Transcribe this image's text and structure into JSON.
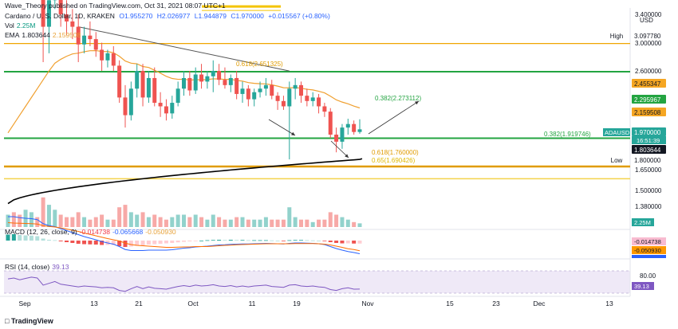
{
  "header": {
    "publisher": "Wave_Theory published on TradingView.com, Oct 31, 2021 08:07 UTC+1",
    "symbol": "Cardano / U. S. Dollar, 1D, KRAKEN",
    "open": "O1.955270",
    "high": "H2.026977",
    "low": "L1.944879",
    "close": "C1.970000",
    "change": "+0.015567 (+0.80%)",
    "vol_label": "Vol",
    "vol_value": "2.25M",
    "ema_label": "EMA",
    "ema_value1": "1.803644",
    "ema_value2": "2.159508"
  },
  "macd": {
    "label": "MACD (12, 26, close, 9)",
    "value1": "-0.014738",
    "value2": "-0.065668",
    "value3": "-0.050930",
    "axis_values": [
      "-0.014738",
      "-0.050930"
    ]
  },
  "rsi": {
    "label": "RSI (14, close)",
    "value": "39.13",
    "axis_values": [
      "80.00",
      "39.13"
    ]
  },
  "footer": {
    "brand": "TradingView"
  },
  "chart_data": {
    "type": "candlestick",
    "currency_label": "USD",
    "price_axis_ticks": [
      "3.400000",
      "3.000000",
      "2.600000",
      "1.650000",
      "1.500000",
      "1.380000"
    ],
    "price_labels": [
      {
        "text": "High",
        "value": "3.097780",
        "style": "plain"
      },
      {
        "text": "",
        "value": "2.455347",
        "style": "orange"
      },
      {
        "text": "",
        "value": "2.295967",
        "style": "green"
      },
      {
        "text": "",
        "value": "2.159508",
        "style": "orange"
      },
      {
        "text": "ADAUSD",
        "value": "1.970000",
        "style": "teal",
        "sub": "16:51:39"
      },
      {
        "text": "",
        "value": "1.803644",
        "style": "black"
      },
      {
        "text": "Low",
        "value": "1.800000",
        "style": "plain"
      }
    ],
    "annotations": [
      {
        "text": "0.618(2.651325)",
        "price": 2.651325
      },
      {
        "text": "0.382(2.273112)",
        "price": 2.273112
      },
      {
        "text": "0.382(1.919746)",
        "price": 1.919746
      },
      {
        "text": "0.618(1.760000)",
        "price": 1.76
      },
      {
        "text": "0.65(1.690426)",
        "price": 1.690426
      }
    ],
    "x_labels": [
      "Sep",
      "13",
      "21",
      "Oct",
      "11",
      "19",
      "Nov",
      "15",
      "23",
      "Dec",
      "13"
    ],
    "volume_label": "2.25M",
    "candles": [
      {
        "date": "2021-09-01",
        "o": 2.85,
        "h": 3.02,
        "l": 2.82,
        "c": 2.95
      },
      {
        "date": "2021-09-02",
        "o": 2.95,
        "h": 3.05,
        "l": 2.88,
        "c": 2.92
      },
      {
        "date": "2021-09-03",
        "o": 2.92,
        "h": 2.97,
        "l": 2.8,
        "c": 2.88
      },
      {
        "date": "2021-09-04",
        "o": 2.88,
        "h": 2.98,
        "l": 2.84,
        "c": 2.95
      },
      {
        "date": "2021-09-05",
        "o": 2.95,
        "h": 3.04,
        "l": 2.9,
        "c": 3.0
      },
      {
        "date": "2021-09-06",
        "o": 3.0,
        "h": 3.06,
        "l": 2.94,
        "c": 2.96
      },
      {
        "date": "2021-09-07",
        "o": 2.96,
        "h": 3.01,
        "l": 2.35,
        "c": 2.55
      },
      {
        "date": "2021-09-08",
        "o": 2.55,
        "h": 2.75,
        "l": 2.4,
        "c": 2.7
      },
      {
        "date": "2021-09-09",
        "o": 2.7,
        "h": 2.88,
        "l": 2.65,
        "c": 2.85
      },
      {
        "date": "2021-09-10",
        "o": 2.85,
        "h": 2.92,
        "l": 2.55,
        "c": 2.62
      },
      {
        "date": "2021-09-11",
        "o": 2.62,
        "h": 2.7,
        "l": 2.5,
        "c": 2.58
      },
      {
        "date": "2021-09-12",
        "o": 2.58,
        "h": 2.65,
        "l": 2.48,
        "c": 2.55
      },
      {
        "date": "2021-09-13",
        "o": 2.55,
        "h": 2.62,
        "l": 2.35,
        "c": 2.45
      },
      {
        "date": "2021-09-14",
        "o": 2.45,
        "h": 2.55,
        "l": 2.4,
        "c": 2.5
      },
      {
        "date": "2021-09-15",
        "o": 2.5,
        "h": 2.58,
        "l": 2.44,
        "c": 2.48
      },
      {
        "date": "2021-09-16",
        "o": 2.48,
        "h": 2.52,
        "l": 2.38,
        "c": 2.42
      },
      {
        "date": "2021-09-17",
        "o": 2.42,
        "h": 2.46,
        "l": 2.3,
        "c": 2.36
      },
      {
        "date": "2021-09-18",
        "o": 2.36,
        "h": 2.42,
        "l": 2.32,
        "c": 2.4
      },
      {
        "date": "2021-09-19",
        "o": 2.4,
        "h": 2.44,
        "l": 2.3,
        "c": 2.33
      },
      {
        "date": "2021-09-20",
        "o": 2.33,
        "h": 2.36,
        "l": 2.12,
        "c": 2.15
      },
      {
        "date": "2021-09-21",
        "o": 2.15,
        "h": 2.22,
        "l": 1.98,
        "c": 2.05
      },
      {
        "date": "2021-09-22",
        "o": 2.05,
        "h": 2.24,
        "l": 2.02,
        "c": 2.2
      },
      {
        "date": "2021-09-23",
        "o": 2.2,
        "h": 2.34,
        "l": 2.15,
        "c": 2.3
      },
      {
        "date": "2021-09-24",
        "o": 2.3,
        "h": 2.34,
        "l": 2.1,
        "c": 2.15
      },
      {
        "date": "2021-09-25",
        "o": 2.15,
        "h": 2.3,
        "l": 2.12,
        "c": 2.26
      },
      {
        "date": "2021-09-26",
        "o": 2.26,
        "h": 2.32,
        "l": 2.1,
        "c": 2.12
      },
      {
        "date": "2021-09-27",
        "o": 2.12,
        "h": 2.18,
        "l": 2.04,
        "c": 2.1
      },
      {
        "date": "2021-09-28",
        "o": 2.1,
        "h": 2.14,
        "l": 2.02,
        "c": 2.06
      },
      {
        "date": "2021-09-29",
        "o": 2.06,
        "h": 2.16,
        "l": 2.03,
        "c": 2.12
      },
      {
        "date": "2021-09-30",
        "o": 2.12,
        "h": 2.24,
        "l": 2.1,
        "c": 2.2
      },
      {
        "date": "2021-10-01",
        "o": 2.2,
        "h": 2.3,
        "l": 2.16,
        "c": 2.26
      },
      {
        "date": "2021-10-02",
        "o": 2.26,
        "h": 2.3,
        "l": 2.16,
        "c": 2.19
      },
      {
        "date": "2021-10-03",
        "o": 2.19,
        "h": 2.32,
        "l": 2.17,
        "c": 2.28
      },
      {
        "date": "2021-10-04",
        "o": 2.28,
        "h": 2.34,
        "l": 2.2,
        "c": 2.24
      },
      {
        "date": "2021-10-05",
        "o": 2.24,
        "h": 2.3,
        "l": 2.2,
        "c": 2.27
      },
      {
        "date": "2021-10-06",
        "o": 2.27,
        "h": 2.36,
        "l": 2.18,
        "c": 2.3
      },
      {
        "date": "2021-10-07",
        "o": 2.3,
        "h": 2.34,
        "l": 2.22,
        "c": 2.25
      },
      {
        "date": "2021-10-08",
        "o": 2.25,
        "h": 2.32,
        "l": 2.2,
        "c": 2.22
      },
      {
        "date": "2021-10-09",
        "o": 2.22,
        "h": 2.28,
        "l": 2.18,
        "c": 2.26
      },
      {
        "date": "2021-10-10",
        "o": 2.26,
        "h": 2.3,
        "l": 2.14,
        "c": 2.17
      },
      {
        "date": "2021-10-11",
        "o": 2.17,
        "h": 2.24,
        "l": 2.12,
        "c": 2.2
      },
      {
        "date": "2021-10-12",
        "o": 2.2,
        "h": 2.22,
        "l": 2.1,
        "c": 2.14
      },
      {
        "date": "2021-10-13",
        "o": 2.14,
        "h": 2.2,
        "l": 2.1,
        "c": 2.18
      },
      {
        "date": "2021-10-14",
        "o": 2.18,
        "h": 2.24,
        "l": 2.15,
        "c": 2.2
      },
      {
        "date": "2021-10-15",
        "o": 2.2,
        "h": 2.26,
        "l": 2.16,
        "c": 2.22
      },
      {
        "date": "2021-10-16",
        "o": 2.22,
        "h": 2.25,
        "l": 2.14,
        "c": 2.16
      },
      {
        "date": "2021-10-17",
        "o": 2.16,
        "h": 2.18,
        "l": 2.08,
        "c": 2.13
      },
      {
        "date": "2021-10-18",
        "o": 2.13,
        "h": 2.16,
        "l": 2.08,
        "c": 2.1
      },
      {
        "date": "2021-10-19",
        "o": 2.1,
        "h": 2.24,
        "l": 1.8,
        "c": 2.2
      },
      {
        "date": "2021-10-20",
        "o": 2.2,
        "h": 2.26,
        "l": 2.14,
        "c": 2.22
      },
      {
        "date": "2021-10-21",
        "o": 2.22,
        "h": 2.24,
        "l": 2.12,
        "c": 2.16
      },
      {
        "date": "2021-10-22",
        "o": 2.16,
        "h": 2.2,
        "l": 2.1,
        "c": 2.13
      },
      {
        "date": "2021-10-23",
        "o": 2.13,
        "h": 2.18,
        "l": 2.1,
        "c": 2.15
      },
      {
        "date": "2021-10-24",
        "o": 2.15,
        "h": 2.17,
        "l": 2.06,
        "c": 2.1
      },
      {
        "date": "2021-10-25",
        "o": 2.1,
        "h": 2.12,
        "l": 2.04,
        "c": 2.07
      },
      {
        "date": "2021-10-26",
        "o": 2.07,
        "h": 2.09,
        "l": 1.92,
        "c": 1.94
      },
      {
        "date": "2021-10-27",
        "o": 1.94,
        "h": 1.98,
        "l": 1.84,
        "c": 1.9
      },
      {
        "date": "2021-10-28",
        "o": 1.9,
        "h": 2.0,
        "l": 1.86,
        "c": 1.98
      },
      {
        "date": "2021-10-29",
        "o": 1.98,
        "h": 2.03,
        "l": 1.94,
        "c": 2.0
      },
      {
        "date": "2021-10-30",
        "o": 2.0,
        "h": 2.02,
        "l": 1.94,
        "c": 1.955
      },
      {
        "date": "2021-10-31",
        "o": 1.955,
        "h": 2.027,
        "l": 1.945,
        "c": 1.97
      }
    ],
    "volume": [
      5,
      6,
      5,
      7,
      6,
      4,
      12,
      9,
      7,
      5,
      4,
      4,
      6,
      4,
      3,
      4,
      5,
      3,
      3,
      8,
      9,
      6,
      5,
      6,
      4,
      5,
      4,
      3,
      4,
      5,
      5,
      4,
      5,
      4,
      3,
      5,
      4,
      3,
      3,
      4,
      4,
      3,
      3,
      3,
      4,
      3,
      3,
      3,
      8,
      4,
      3,
      3,
      2,
      3,
      3,
      6,
      5,
      4,
      3,
      2,
      1.5
    ],
    "macd_hist": [
      0.03,
      0.032,
      0.028,
      0.026,
      0.025,
      0.022,
      0.01,
      0.004,
      0.002,
      -0.004,
      -0.008,
      -0.012,
      -0.016,
      -0.018,
      -0.019,
      -0.02,
      -0.022,
      -0.022,
      -0.022,
      -0.028,
      -0.032,
      -0.03,
      -0.026,
      -0.024,
      -0.02,
      -0.018,
      -0.016,
      -0.014,
      -0.012,
      -0.009,
      -0.006,
      -0.004,
      -0.002,
      0.0,
      0.002,
      0.003,
      0.004,
      0.003,
      0.004,
      0.003,
      0.003,
      0.002,
      0.002,
      0.002,
      0.002,
      0.001,
      0.0,
      -0.001,
      0.002,
      0.003,
      0.003,
      0.002,
      0.001,
      0.0,
      -0.002,
      -0.008,
      -0.012,
      -0.014,
      -0.014,
      -0.015,
      -0.015
    ],
    "macd_line": [
      0.12,
      0.12,
      0.115,
      0.112,
      0.11,
      0.105,
      0.085,
      0.075,
      0.07,
      0.06,
      0.05,
      0.04,
      0.03,
      0.02,
      0.012,
      0.004,
      -0.005,
      -0.012,
      -0.018,
      -0.03,
      -0.045,
      -0.05,
      -0.05,
      -0.05,
      -0.048,
      -0.048,
      -0.048,
      -0.048,
      -0.046,
      -0.042,
      -0.038,
      -0.036,
      -0.032,
      -0.03,
      -0.028,
      -0.025,
      -0.022,
      -0.021,
      -0.019,
      -0.018,
      -0.017,
      -0.017,
      -0.016,
      -0.015,
      -0.014,
      -0.015,
      -0.016,
      -0.017,
      -0.014,
      -0.012,
      -0.012,
      -0.013,
      -0.014,
      -0.016,
      -0.02,
      -0.03,
      -0.04,
      -0.048,
      -0.055,
      -0.06,
      -0.066
    ],
    "signal_line": [
      0.09,
      0.088,
      0.087,
      0.086,
      0.085,
      0.083,
      0.075,
      0.071,
      0.068,
      0.064,
      0.058,
      0.052,
      0.046,
      0.038,
      0.031,
      0.024,
      0.017,
      0.01,
      0.004,
      -0.002,
      -0.013,
      -0.02,
      -0.024,
      -0.026,
      -0.028,
      -0.03,
      -0.032,
      -0.034,
      -0.034,
      -0.033,
      -0.032,
      -0.032,
      -0.03,
      -0.03,
      -0.03,
      -0.028,
      -0.026,
      -0.024,
      -0.023,
      -0.021,
      -0.02,
      -0.019,
      -0.018,
      -0.017,
      -0.016,
      -0.016,
      -0.016,
      -0.016,
      -0.016,
      -0.015,
      -0.015,
      -0.015,
      -0.015,
      -0.016,
      -0.018,
      -0.022,
      -0.028,
      -0.034,
      -0.041,
      -0.045,
      -0.051
    ],
    "rsi": [
      62,
      64,
      60,
      63,
      66,
      64,
      48,
      52,
      56,
      50,
      48,
      46,
      44,
      46,
      45,
      44,
      42,
      43,
      42,
      36,
      34,
      40,
      45,
      40,
      44,
      41,
      40,
      39,
      42,
      45,
      47,
      45,
      48,
      46,
      47,
      49,
      46,
      45,
      47,
      44,
      46,
      44,
      46,
      47,
      48,
      45,
      44,
      43,
      48,
      49,
      46,
      45,
      46,
      44,
      43,
      38,
      36,
      40,
      42,
      39,
      39.13
    ]
  }
}
